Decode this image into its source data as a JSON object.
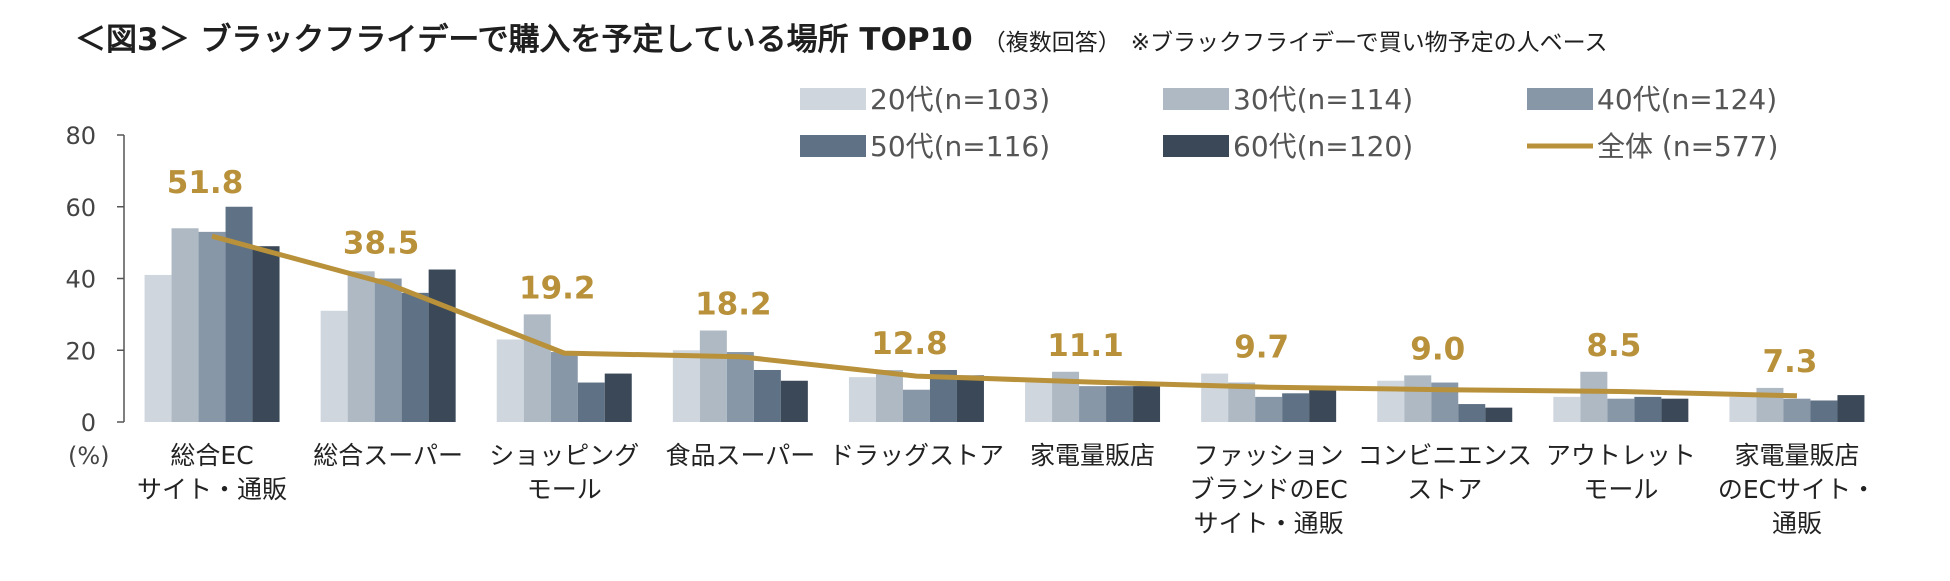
{
  "title": {
    "main": "＜図3＞ ブラックフライデーで購入を予定している場所 TOP10",
    "sub": "（複数回答）",
    "note": "※ブラックフライデーで買い物予定の人ベース"
  },
  "colors": {
    "s20": "#cfd6de",
    "s30": "#aeb9c4",
    "s40": "#8797a8",
    "s50": "#5f7184",
    "s60": "#3a4857",
    "total": "#b8913a",
    "axis": "#555555"
  },
  "chart_data": {
    "type": "bar",
    "title": "＜図3＞ ブラックフライデーで購入を予定している場所 TOP10",
    "ylabel": "(%)",
    "ylim": [
      0,
      80
    ],
    "yticks": [
      "0",
      "20",
      "40",
      "60",
      "80"
    ],
    "categories": [
      [
        "総合EC",
        "サイト・通販"
      ],
      [
        "総合スーパー"
      ],
      [
        "ショッピング",
        "モール"
      ],
      [
        "食品スーパー"
      ],
      [
        "ドラッグストア"
      ],
      [
        "家電量販店"
      ],
      [
        "ファッション",
        "ブランドのEC",
        "サイト・通販"
      ],
      [
        "コンビニエンス",
        "ストア"
      ],
      [
        "アウトレット",
        "モール"
      ],
      [
        "家電量販店",
        "のECサイト・",
        "通販"
      ]
    ],
    "series": [
      {
        "name": "20代(n=103)",
        "color_key": "s20",
        "values": [
          41,
          31,
          23,
          20,
          12.5,
          11,
          13.5,
          11.5,
          7,
          7
        ]
      },
      {
        "name": "30代(n=114)",
        "color_key": "s30",
        "values": [
          54,
          42,
          30,
          25.5,
          14.5,
          14,
          11,
          13,
          14,
          9.5
        ]
      },
      {
        "name": "40代(n=124)",
        "color_key": "s40",
        "values": [
          53,
          40,
          19.5,
          19.5,
          9,
          10,
          7,
          11,
          6.5,
          6.5
        ]
      },
      {
        "name": "50代(n=116)",
        "color_key": "s50",
        "values": [
          60,
          36,
          11,
          14.5,
          14.5,
          10,
          8,
          5,
          7,
          6
        ]
      },
      {
        "name": "60代(n=120)",
        "color_key": "s60",
        "values": [
          49,
          42.5,
          13.5,
          11.5,
          13,
          10,
          9,
          4,
          6.5,
          7.5
        ]
      }
    ],
    "line": {
      "name": "全体 (n=577)",
      "color_key": "total",
      "values": [
        51.8,
        38.5,
        19.2,
        18.2,
        12.8,
        11.1,
        9.7,
        9.0,
        8.5,
        7.3
      ],
      "labels": [
        "51.8",
        "38.5",
        "19.2",
        "18.2",
        "12.8",
        "11.1",
        "9.7",
        "9.0",
        "8.5",
        "7.3"
      ]
    },
    "legend": [
      {
        "label": "20代(n=103)",
        "kind": "bar",
        "color_key": "s20"
      },
      {
        "label": "30代(n=114)",
        "kind": "bar",
        "color_key": "s30"
      },
      {
        "label": "40代(n=124)",
        "kind": "bar",
        "color_key": "s40"
      },
      {
        "label": "50代(n=116)",
        "kind": "bar",
        "color_key": "s50"
      },
      {
        "label": "60代(n=120)",
        "kind": "bar",
        "color_key": "s60"
      },
      {
        "label": "全体 (n=577)",
        "kind": "line",
        "color_key": "total"
      }
    ]
  }
}
